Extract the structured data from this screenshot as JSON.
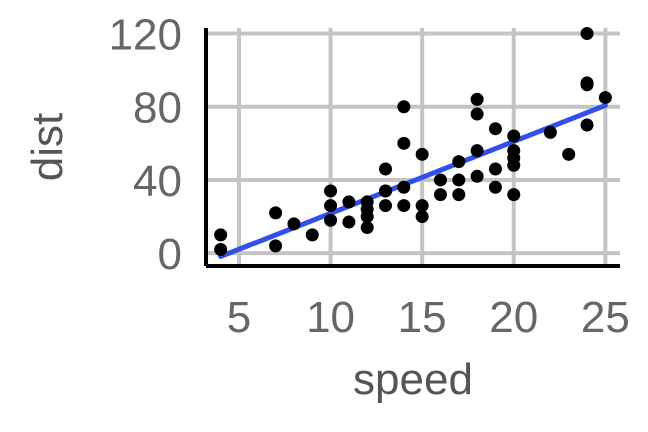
{
  "chart_data": {
    "type": "scatter",
    "xlabel": "speed",
    "ylabel": "dist",
    "xlim": [
      3.2,
      25.8
    ],
    "ylim": [
      -7,
      123
    ],
    "x_ticks": [
      5,
      10,
      15,
      20,
      25
    ],
    "y_ticks": [
      0,
      40,
      80,
      120
    ],
    "x_tick_labels": [
      "5",
      "10",
      "15",
      "20",
      "25"
    ],
    "y_tick_labels": [
      "0",
      "40",
      "80",
      "120"
    ],
    "grid": true,
    "legend": "none",
    "point_color": "#000000",
    "fit_line": {
      "type": "linear",
      "color": "#3050e8",
      "x": [
        4,
        25
      ],
      "y": [
        -1.8,
        80.7
      ]
    },
    "points": [
      {
        "x": 4,
        "y": 2
      },
      {
        "x": 4,
        "y": 10
      },
      {
        "x": 7,
        "y": 4
      },
      {
        "x": 7,
        "y": 22
      },
      {
        "x": 8,
        "y": 16
      },
      {
        "x": 9,
        "y": 10
      },
      {
        "x": 10,
        "y": 18
      },
      {
        "x": 10,
        "y": 26
      },
      {
        "x": 10,
        "y": 34
      },
      {
        "x": 11,
        "y": 17
      },
      {
        "x": 11,
        "y": 28
      },
      {
        "x": 12,
        "y": 14
      },
      {
        "x": 12,
        "y": 20
      },
      {
        "x": 12,
        "y": 24
      },
      {
        "x": 12,
        "y": 28
      },
      {
        "x": 13,
        "y": 26
      },
      {
        "x": 13,
        "y": 34
      },
      {
        "x": 13,
        "y": 34
      },
      {
        "x": 13,
        "y": 46
      },
      {
        "x": 14,
        "y": 26
      },
      {
        "x": 14,
        "y": 36
      },
      {
        "x": 14,
        "y": 60
      },
      {
        "x": 14,
        "y": 80
      },
      {
        "x": 15,
        "y": 20
      },
      {
        "x": 15,
        "y": 26
      },
      {
        "x": 15,
        "y": 54
      },
      {
        "x": 16,
        "y": 32
      },
      {
        "x": 16,
        "y": 40
      },
      {
        "x": 17,
        "y": 32
      },
      {
        "x": 17,
        "y": 40
      },
      {
        "x": 17,
        "y": 50
      },
      {
        "x": 18,
        "y": 42
      },
      {
        "x": 18,
        "y": 56
      },
      {
        "x": 18,
        "y": 76
      },
      {
        "x": 18,
        "y": 84
      },
      {
        "x": 19,
        "y": 36
      },
      {
        "x": 19,
        "y": 46
      },
      {
        "x": 19,
        "y": 68
      },
      {
        "x": 20,
        "y": 32
      },
      {
        "x": 20,
        "y": 48
      },
      {
        "x": 20,
        "y": 52
      },
      {
        "x": 20,
        "y": 56
      },
      {
        "x": 20,
        "y": 64
      },
      {
        "x": 22,
        "y": 66
      },
      {
        "x": 23,
        "y": 54
      },
      {
        "x": 24,
        "y": 70
      },
      {
        "x": 24,
        "y": 92
      },
      {
        "x": 24,
        "y": 93
      },
      {
        "x": 24,
        "y": 120
      },
      {
        "x": 25,
        "y": 85
      }
    ]
  }
}
